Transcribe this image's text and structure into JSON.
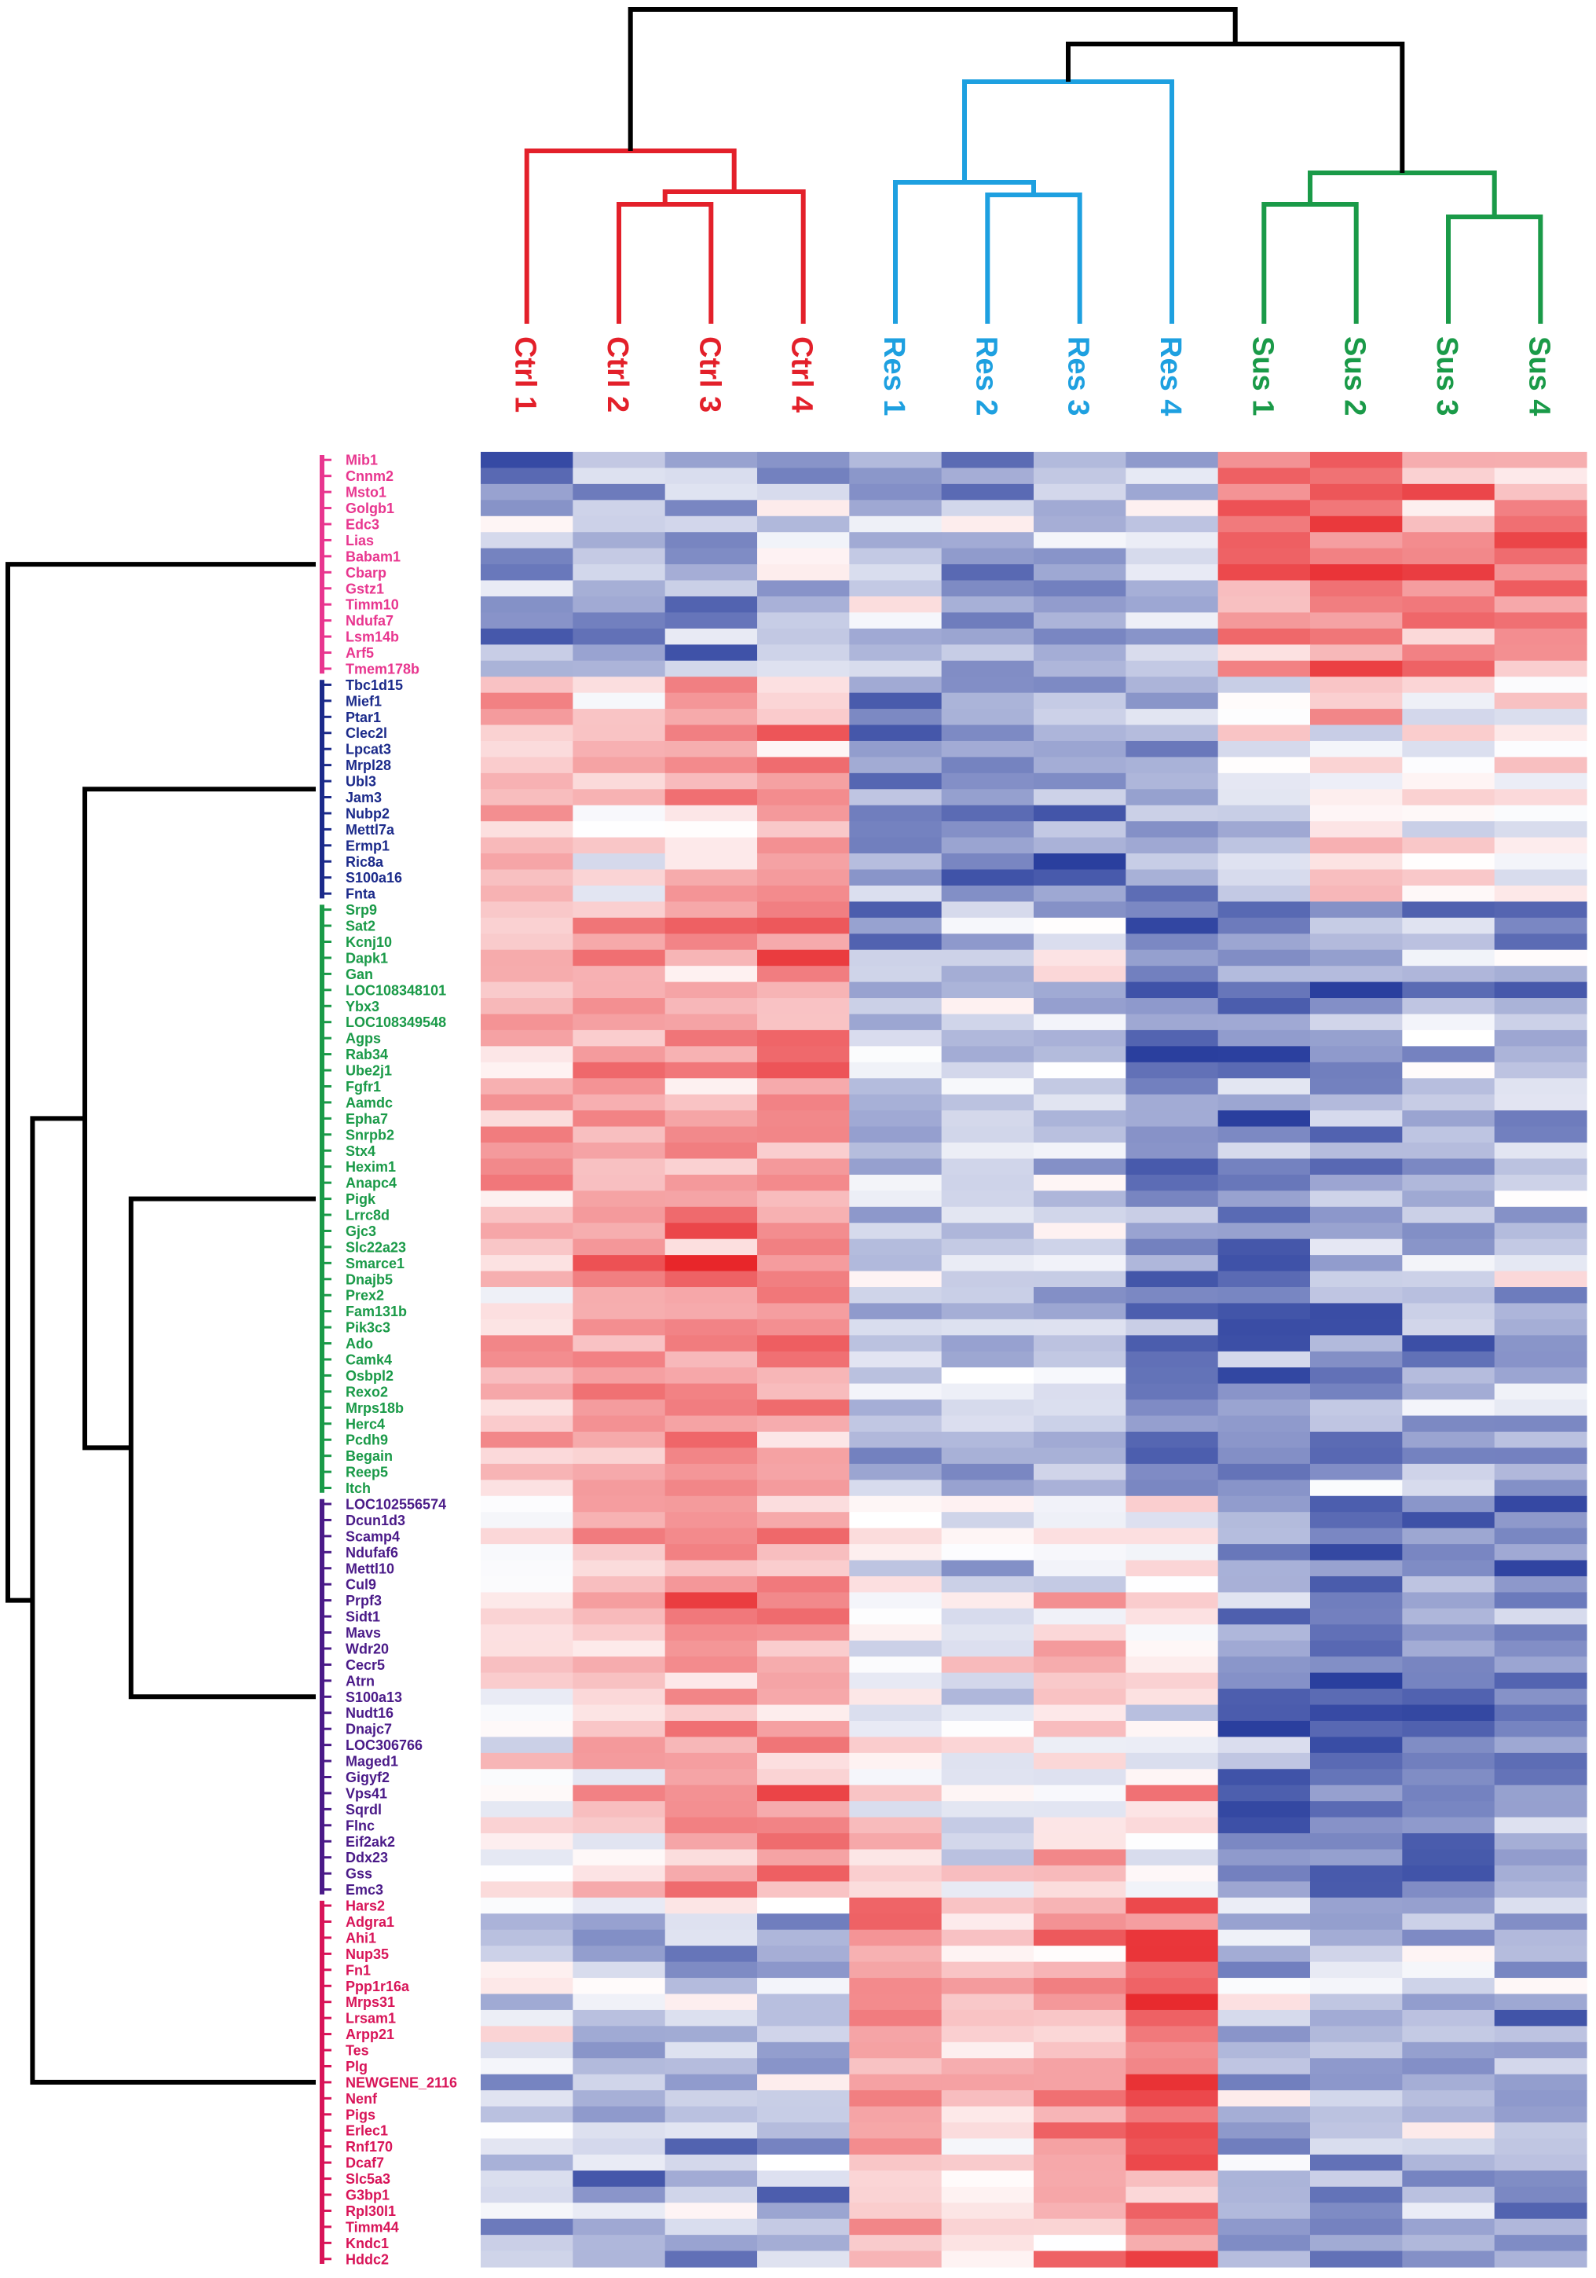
{
  "chart_data": {
    "type": "heatmap",
    "title": "",
    "value_range": [
      -2,
      2
    ],
    "color_scale": {
      "low": "#2a3f9e",
      "mid": "#ffffff",
      "high": "#e8262a"
    },
    "groups": [
      {
        "name": "Ctrl",
        "color": "#e3202a"
      },
      {
        "name": "Res",
        "color": "#1ea0e0"
      },
      {
        "name": "Sus",
        "color": "#1a9a48"
      }
    ],
    "samples": [
      {
        "label": "Ctrl 1",
        "group": 0
      },
      {
        "label": "Ctrl 2",
        "group": 0
      },
      {
        "label": "Ctrl 3",
        "group": 0
      },
      {
        "label": "Ctrl 4",
        "group": 0
      },
      {
        "label": "Res 1",
        "group": 1
      },
      {
        "label": "Res 2",
        "group": 1
      },
      {
        "label": "Res 3",
        "group": 1
      },
      {
        "label": "Res 4",
        "group": 1
      },
      {
        "label": "Sus 1",
        "group": 2
      },
      {
        "label": "Sus 2",
        "group": 2
      },
      {
        "label": "Sus 3",
        "group": 2
      },
      {
        "label": "Sus 4",
        "group": 2
      }
    ],
    "col_dendrogram": {
      "leaves": [
        "Ctrl 1",
        "Ctrl 2",
        "Ctrl 3",
        "Ctrl 4",
        "Res 1",
        "Res 2",
        "Res 3",
        "Res 4",
        "Sus 1",
        "Sus 2",
        "Sus 3",
        "Sus 4"
      ],
      "merges": [
        {
          "a": "L1",
          "b": "L2",
          "h": 0.38,
          "color": "#e3202a"
        },
        {
          "a": "M0",
          "b": "L3",
          "h": 0.42,
          "color": "#e3202a"
        },
        {
          "a": "L0",
          "b": "M1",
          "h": 0.55,
          "color": "#e3202a"
        },
        {
          "a": "L5",
          "b": "L6",
          "h": 0.41,
          "color": "#1ea0e0"
        },
        {
          "a": "L4",
          "b": "M3",
          "h": 0.45,
          "color": "#1ea0e0"
        },
        {
          "a": "M4",
          "b": "L7",
          "h": 0.77,
          "color": "#1ea0e0"
        },
        {
          "a": "L8",
          "b": "L9",
          "h": 0.38,
          "color": "#1a9a48"
        },
        {
          "a": "L10",
          "b": "L11",
          "h": 0.34,
          "color": "#1a9a48"
        },
        {
          "a": "M6",
          "b": "M7",
          "h": 0.48,
          "color": "#1a9a48"
        },
        {
          "a": "M5",
          "b": "M8",
          "h": 0.89,
          "color": "#000000"
        },
        {
          "a": "M2",
          "b": "M9",
          "h": 1.0,
          "color": "#000000"
        }
      ]
    },
    "clusters": [
      {
        "name": "cluster-1",
        "color": "#e8368f",
        "genes": [
          "Mib1",
          "Cnnm2",
          "Msto1",
          "Golgb1",
          "Edc3",
          "Lias",
          "Babam1",
          "Cbarp",
          "Gstz1",
          "Timm10",
          "Ndufa7",
          "Lsm14b",
          "Arf5",
          "Tmem178b"
        ]
      },
      {
        "name": "cluster-2",
        "color": "#1b2a8a",
        "genes": [
          "Tbc1d15",
          "Mief1",
          "Ptar1",
          "Clec2l",
          "Lpcat3",
          "Mrpl28",
          "Ubl3",
          "Jam3",
          "Nubp2",
          "Mettl7a",
          "Ermp1",
          "Ric8a",
          "S100a16",
          "Fnta"
        ]
      },
      {
        "name": "cluster-3",
        "color": "#1a9a48",
        "genes": [
          "Srp9",
          "Sat2",
          "Kcnj10",
          "Dapk1",
          "Gan",
          "LOC108348101",
          "Ybx3",
          "LOC108349548",
          "Agps",
          "Rab34",
          "Ube2j1",
          "Fgfr1",
          "Aamdc",
          "Epha7",
          "Snrpb2",
          "Stx4",
          "Hexim1",
          "Anapc4",
          "Pigk",
          "Lrrc8d",
          "Gjc3",
          "Slc22a23",
          "Smarce1",
          "Dnajb5",
          "Prex2",
          "Fam131b",
          "Pik3c3",
          "Ado",
          "Camk4",
          "Osbpl2",
          "Rexo2",
          "Mrps18b",
          "Herc4",
          "Pcdh9",
          "Begain",
          "Reep5",
          "Itch"
        ]
      },
      {
        "name": "cluster-4",
        "color": "#4a1a88",
        "genes": [
          "LOC102556574",
          "Dcun1d3",
          "Scamp4",
          "Ndufaf6",
          "Mettl10",
          "Cul9",
          "Prpf3",
          "Sidt1",
          "Mavs",
          "Wdr20",
          "Cecr5",
          "Atrn",
          "S100a13",
          "Nudt16",
          "Dnajc7",
          "LOC306766",
          "Maged1",
          "Gigyf2",
          "Vps41",
          "Sqrdl",
          "Flnc",
          "Eif2ak2",
          "Ddx23",
          "Gss",
          "Emc3"
        ]
      },
      {
        "name": "cluster-5",
        "color": "#d81458",
        "genes": [
          "Hars2",
          "Adgra1",
          "Ahi1",
          "Nup35",
          "Fn1",
          "Ppp1r16a",
          "Mrps31",
          "Lrsam1",
          "Arpp21",
          "Tes",
          "Plg",
          "NEWGENE_2116",
          "Nenf",
          "Pigs",
          "Erlec1",
          "Rnf170",
          "Dcaf7",
          "Slc5a3",
          "G3bp1",
          "Rpl30l1",
          "Timm44",
          "Kndc1",
          "Hddc2"
        ]
      }
    ],
    "cluster_profiles": [
      [
        -0.8,
        -0.7,
        -0.8,
        -0.5,
        -0.6,
        -0.8,
        -0.8,
        -0.5,
        1.1,
        1.3,
        1.0,
        1.0
      ],
      [
        0.7,
        0.3,
        0.7,
        0.9,
        -1.0,
        -1.1,
        -1.1,
        -1.0,
        -0.2,
        0.3,
        0.2,
        0.1
      ],
      [
        0.6,
        0.9,
        1.0,
        1.0,
        -0.7,
        -0.5,
        -0.5,
        -1.3,
        -1.3,
        -1.0,
        -0.8,
        -0.7
      ],
      [
        0.1,
        0.6,
        0.8,
        0.6,
        0.1,
        -0.3,
        0.2,
        0.1,
        -1.3,
        -1.5,
        -1.3,
        -1.2
      ],
      [
        -0.4,
        -0.6,
        -0.6,
        -0.6,
        0.9,
        0.5,
        0.7,
        1.4,
        -0.7,
        -0.7,
        -0.8,
        -0.8
      ]
    ],
    "row_dendrogram": {
      "merges": [
        {
          "a": "C2",
          "b": "C3",
          "h": 0.6
        },
        {
          "a": "C1",
          "b": "M0",
          "h": 0.75
        },
        {
          "a": "M1",
          "b": "C4",
          "h": 0.92
        },
        {
          "a": "C0",
          "b": "M2",
          "h": 1.0
        }
      ]
    }
  }
}
